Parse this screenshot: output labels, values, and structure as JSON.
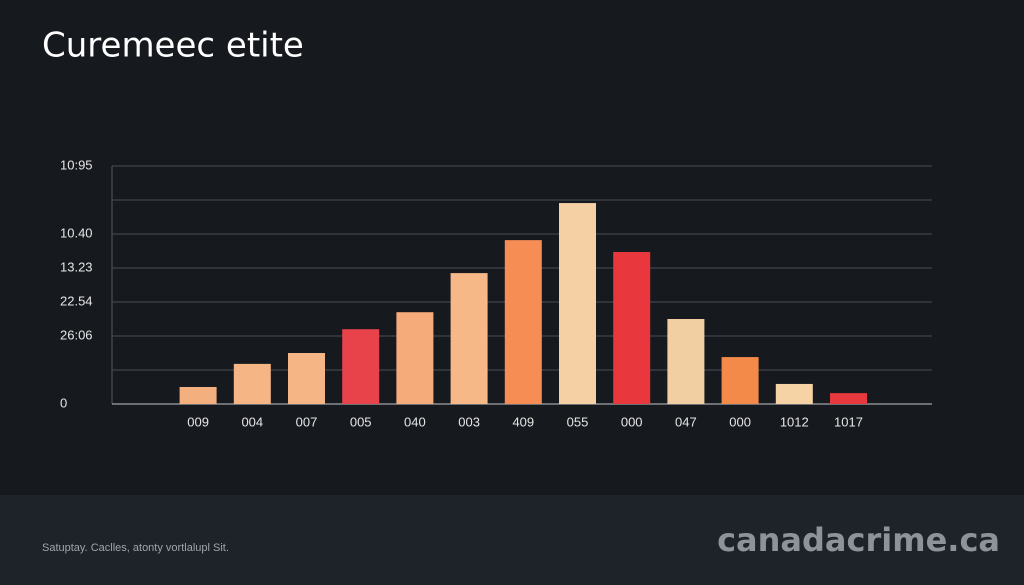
{
  "chart_data": {
    "type": "bar",
    "title": "Curemeec etite",
    "categories": [
      "009",
      "004",
      "007",
      "005",
      "040",
      "003",
      "409",
      "055",
      "000",
      "047",
      "000",
      "1012",
      "1017"
    ],
    "values": [
      0.5,
      1.18,
      1.5,
      2.2,
      2.7,
      3.85,
      4.82,
      5.91,
      4.47,
      2.5,
      1.38,
      0.59,
      0.32
    ],
    "colors": [
      "#f3b07e",
      "#f5b585",
      "#f5b585",
      "#e8434a",
      "#f5ac7a",
      "#f7b888",
      "#f58d55",
      "#f5d0a5",
      "#e8373d",
      "#f2cfa3",
      "#f38a4a",
      "#f5d3a5",
      "#e83a3e"
    ],
    "ylim": [
      0,
      7
    ],
    "yticks": [
      {
        "value": 0,
        "label": "0"
      },
      {
        "value": 1,
        "label": null
      },
      {
        "value": 2,
        "label": "26:06"
      },
      {
        "value": 3,
        "label": "22.54"
      },
      {
        "value": 4,
        "label": "13.23"
      },
      {
        "value": 5,
        "label": "10.40"
      },
      {
        "value": 6,
        "label": null
      },
      {
        "value": 7,
        "label": "10:95"
      }
    ],
    "grid": true
  },
  "footer": {
    "caption": "Satuptay. Caclles, atonty vortlalupl Sit.",
    "brand": "canadacrime.ca"
  }
}
